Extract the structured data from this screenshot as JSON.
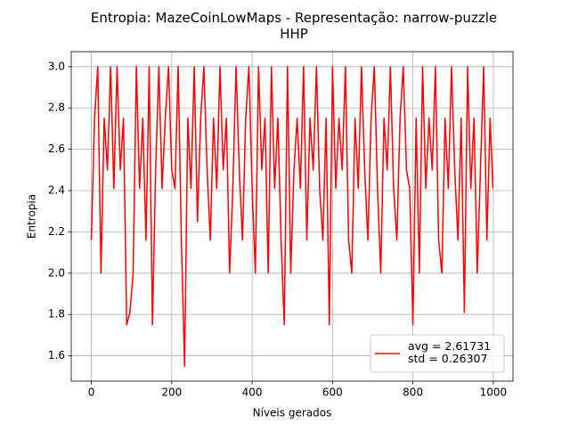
{
  "chart_data": {
    "type": "line",
    "title": "Entropia: MazeCoinLowMaps - Representação: narrow-puzzle\nHHP",
    "x_label": "Níveis gerados",
    "y_label": "Entropia",
    "x": [
      0,
      8,
      16,
      24,
      32,
      40,
      48,
      56,
      64,
      72,
      80,
      88,
      96,
      104,
      112,
      120,
      128,
      136,
      144,
      152,
      160,
      168,
      176,
      184,
      192,
      200,
      208,
      216,
      224,
      232,
      240,
      248,
      256,
      264,
      272,
      280,
      288,
      296,
      304,
      312,
      320,
      328,
      336,
      344,
      352,
      360,
      368,
      376,
      384,
      392,
      400,
      408,
      416,
      424,
      432,
      440,
      448,
      456,
      464,
      472,
      480,
      488,
      496,
      504,
      512,
      520,
      528,
      536,
      544,
      552,
      560,
      568,
      576,
      584,
      592,
      600,
      608,
      616,
      624,
      632,
      640,
      648,
      656,
      664,
      672,
      680,
      688,
      696,
      704,
      712,
      720,
      728,
      736,
      744,
      752,
      760,
      768,
      776,
      784,
      792,
      800,
      808,
      816,
      824,
      832,
      840,
      848,
      856,
      864,
      872,
      880,
      888,
      896,
      904,
      912,
      920,
      928,
      936,
      944,
      952,
      960,
      968,
      976,
      984,
      992,
      999
    ],
    "series": [
      {
        "name": "avg = 2.61731\nstd = 0.26307",
        "color": "#ff0000",
        "values": [
          2.16,
          2.75,
          3.0,
          2.0,
          2.75,
          2.5,
          3.0,
          2.41,
          3.0,
          2.5,
          2.75,
          1.75,
          1.81,
          2.0,
          3.0,
          2.41,
          2.75,
          2.16,
          3.0,
          1.75,
          2.5,
          3.0,
          2.41,
          2.75,
          3.0,
          2.5,
          2.41,
          3.0,
          2.16,
          1.55,
          2.75,
          2.41,
          3.0,
          2.25,
          2.75,
          3.0,
          2.5,
          2.16,
          2.75,
          2.41,
          3.0,
          2.5,
          2.75,
          2.0,
          2.41,
          3.0,
          2.5,
          2.16,
          2.75,
          3.0,
          2.41,
          2.0,
          3.0,
          2.5,
          2.75,
          2.0,
          3.0,
          2.41,
          2.75,
          2.16,
          1.75,
          3.0,
          2.0,
          2.5,
          2.75,
          2.41,
          3.0,
          2.16,
          2.75,
          2.5,
          3.0,
          2.41,
          2.16,
          2.75,
          1.75,
          3.0,
          2.41,
          2.75,
          2.5,
          3.0,
          2.16,
          2.0,
          2.75,
          2.41,
          3.0,
          2.5,
          2.16,
          2.75,
          3.0,
          2.41,
          2.0,
          2.75,
          2.5,
          3.0,
          2.41,
          2.16,
          2.75,
          3.0,
          2.5,
          2.41,
          1.75,
          2.75,
          2.0,
          3.0,
          2.41,
          2.75,
          2.5,
          3.0,
          2.16,
          2.0,
          2.75,
          2.41,
          3.0,
          2.5,
          2.16,
          2.75,
          1.81,
          3.0,
          2.41,
          2.75,
          2.0,
          2.5,
          3.0,
          2.16,
          2.75,
          2.41
        ]
      }
    ],
    "xlim": [
      -49.95,
      1048.95
    ],
    "xticks": [
      0,
      200,
      400,
      600,
      800,
      1000
    ],
    "ylim": [
      1.4775,
      3.0725
    ],
    "yticks": [
      1.6,
      1.8,
      {
        "value": 2,
        "label": "2.0"
      },
      2.2,
      2.4,
      2.6,
      2.8,
      {
        "value": 3,
        "label": "3.0"
      }
    ],
    "grid": true,
    "legend": "lower right"
  }
}
